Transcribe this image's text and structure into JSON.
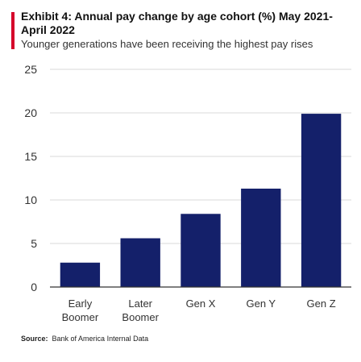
{
  "header": {
    "title": "Exhibit 4: Annual pay change by age cohort (%) May 2021-April 2022",
    "subtitle": "Younger generations have been receiving the highest pay rises"
  },
  "footer": {
    "source_label": "Source:",
    "source_text": "Bank of America Internal Data"
  },
  "colors": {
    "bar": "#14206a",
    "accent": "#d5002a",
    "grid": "#d9d9d9"
  },
  "chart_data": {
    "type": "bar",
    "categories": [
      "Early Boomer",
      "Later Boomer",
      "Gen X",
      "Gen Y",
      "Gen Z"
    ],
    "category_lines": [
      [
        "Early",
        "Boomer"
      ],
      [
        "Later",
        "Boomer"
      ],
      [
        "Gen X"
      ],
      [
        "Gen Y"
      ],
      [
        "Gen Z"
      ]
    ],
    "values": [
      2.8,
      5.6,
      8.4,
      11.3,
      19.9
    ],
    "title": "Exhibit 4: Annual pay change by age cohort (%) May 2021-April 2022",
    "xlabel": "",
    "ylabel": "",
    "ylim": [
      0,
      25
    ],
    "yticks": [
      0,
      5,
      10,
      15,
      20,
      25
    ],
    "grid": true,
    "legend": "none"
  }
}
